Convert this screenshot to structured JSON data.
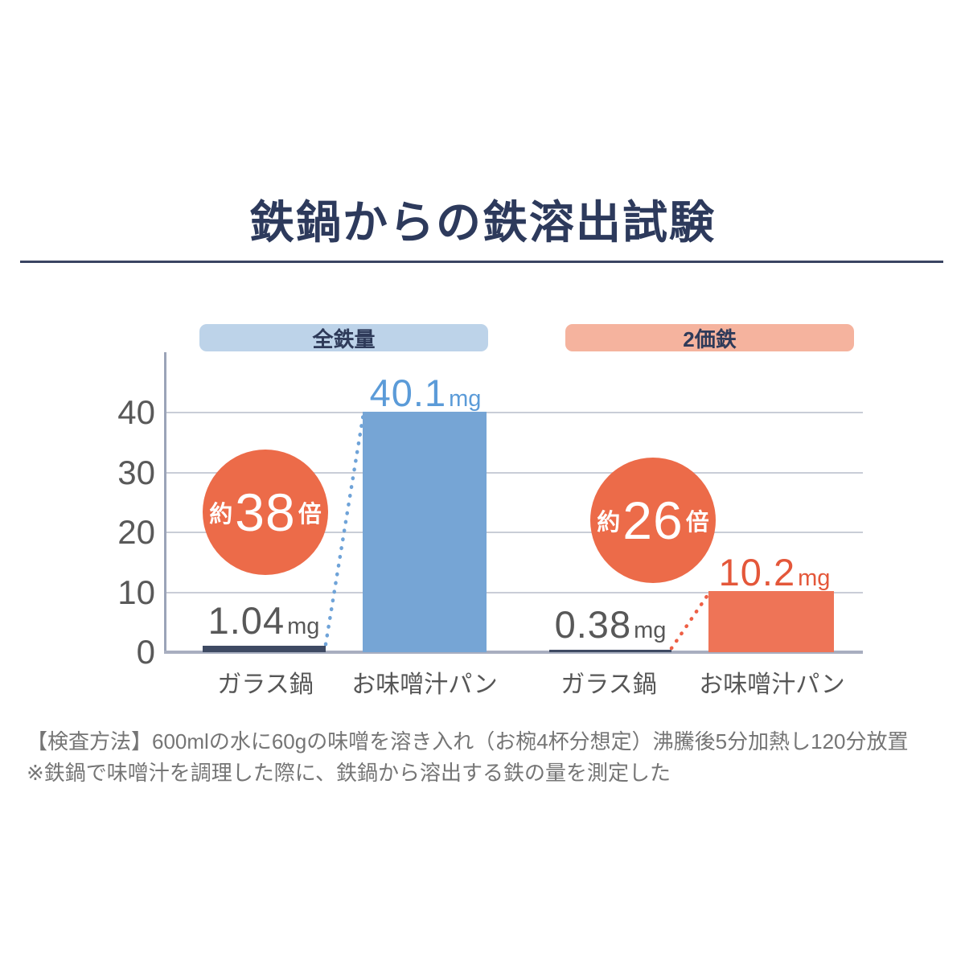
{
  "title": "鉄鍋からの鉄溶出試験",
  "legend": {
    "total_iron": "全鉄量",
    "divalent_iron": "2価鉄"
  },
  "colors": {
    "title_navy": "#2d3a5c",
    "pill_blue_bg": "#bdd3e9",
    "pill_orange_bg": "#f5b39e",
    "bar_navy": "#3e4a63",
    "bar_blue": "#76a5d5",
    "bar_orange": "#ee7457",
    "circle_orange": "#ec6b49",
    "label_blue": "#5b9bd8",
    "label_orange": "#e4573a",
    "gridline": "#c9cdd7",
    "axis": "#a8aec0",
    "footnote_gray": "#757575"
  },
  "chart_data": {
    "type": "bar",
    "title": "鉄鍋からの鉄溶出試験",
    "ylabel": "mg",
    "ylim": [
      0,
      45
    ],
    "y_ticks": [
      0,
      10,
      20,
      30,
      40
    ],
    "grid": true,
    "groups": [
      {
        "name": "全鉄量",
        "categories": [
          "ガラス鍋",
          "お味噌汁パン"
        ],
        "values": [
          1.04,
          40.1
        ],
        "value_labels": [
          {
            "num": "1.04",
            "unit": "mg"
          },
          {
            "num": "40.1",
            "unit": "mg"
          }
        ],
        "ratio_badge": {
          "prefix": "約",
          "value": "38",
          "suffix": "倍"
        }
      },
      {
        "name": "2価鉄",
        "categories": [
          "ガラス鍋",
          "お味噌汁パン"
        ],
        "values": [
          0.38,
          10.2
        ],
        "value_labels": [
          {
            "num": "0.38",
            "unit": "mg"
          },
          {
            "num": "10.2",
            "unit": "mg"
          }
        ],
        "ratio_badge": {
          "prefix": "約",
          "value": "26",
          "suffix": "倍"
        }
      }
    ]
  },
  "footnotes": [
    "【検査方法】600mlの水に60gの味噌を溶き入れ（お椀4杯分想定）沸騰後5分加熱し120分放置",
    "※鉄鍋で味噌汁を調理した際に、鉄鍋から溶出する鉄の量を測定した"
  ]
}
